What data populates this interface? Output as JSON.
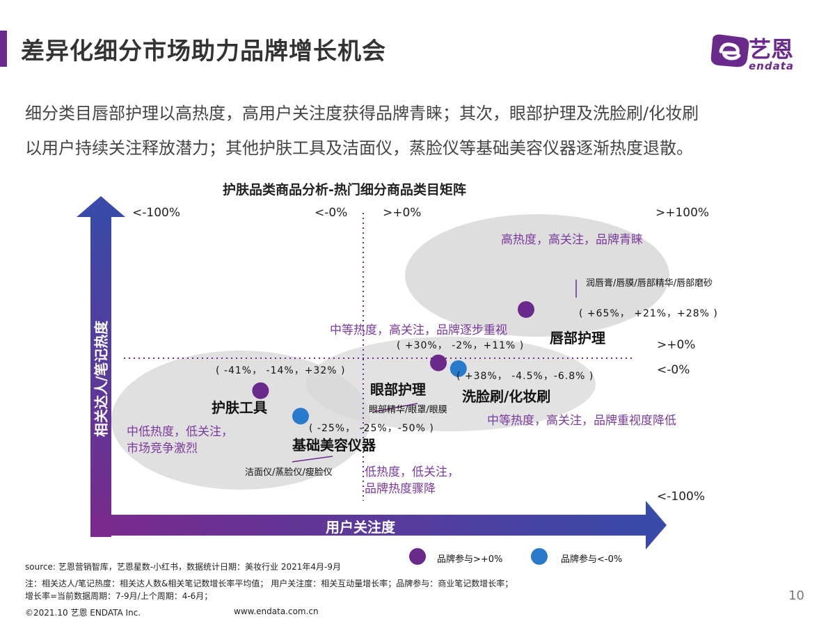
{
  "header": {
    "title": "差异化细分市场助力品牌增长机会",
    "logo_cn": "艺恩",
    "logo_en": "endata"
  },
  "summary": {
    "line1": "细分类目唇部护理以高热度，高用户关注度获得品牌青睐；其次，眼部护理及洗脸刷/化妆刷",
    "line2": "以用户持续关注释放潜力；其他护肤工具及洁面仪，蒸脸仪等基础美容仪器逐渐热度退散。"
  },
  "chart_data": {
    "type": "scatter",
    "title": "护肤品类商品分析-热门细分商品类目矩阵",
    "xlabel": "用户关注度",
    "ylabel": "相关达人/笔记热度",
    "x_ticks": {
      "min": "<-100%",
      "neg0": "<-0%",
      "pos0": ">+0%",
      "max": ">+100%"
    },
    "y_ticks": {
      "max": ">+0%",
      "zero_neg": "<-0%",
      "min": "<-100%"
    },
    "colors": {
      "positive": "#6a2a8c",
      "negative": "#2a7acb",
      "accent": "#6a2a8c",
      "region": "#d8d8d8"
    },
    "points": [
      {
        "category": "唇部护理",
        "values": "( +65%， +21%，+28% )",
        "subcategories": "润唇膏/唇膜/唇部精华/唇部磨砂",
        "x": 65,
        "y": 21,
        "brand": 28,
        "group": "positive"
      },
      {
        "category": "眼部护理",
        "values": "( +30%， -2%，+11% )",
        "subcategories": "眼部精华/眼罩/眼膜",
        "x": 30,
        "y": -2,
        "brand": 11,
        "group": "positive"
      },
      {
        "category": "洗脸刷/化妆刷",
        "values": "( +38%， -4.5%，-6.8% )",
        "subcategories": "",
        "x": 38,
        "y": -4.5,
        "brand": -6.8,
        "group": "negative"
      },
      {
        "category": "护肤工具",
        "values": "( -41%， -14%，+32% )",
        "subcategories": "",
        "x": -41,
        "y": -14,
        "brand": 32,
        "group": "positive"
      },
      {
        "category": "基础美容仪器",
        "values": "( -25%， -25%，-50% )",
        "subcategories": "洁面仪/蒸脸仪/瘦脸仪",
        "x": -25,
        "y": -25,
        "brand": -50,
        "group": "negative"
      }
    ],
    "annotations": {
      "top_right": "高热度，高关注，品牌青睐",
      "middle": "中等热度，高关注，品牌逐步重视",
      "right_low": "中等热度，高关注，品牌重视度降低",
      "left_low_1": "中低热度，低关注，",
      "left_low_2": "市场竞争激烈",
      "bottom_1": "低热度，低关注，",
      "bottom_2": "品牌热度骤降"
    },
    "legend": [
      {
        "label": "品牌参与>+0%",
        "color": "#6a2a8c"
      },
      {
        "label": "品牌参与<-0%",
        "color": "#2a7acb"
      }
    ]
  },
  "footer": {
    "source": "source: 艺恩营销智库，艺恩星数-小红书，数据统计日期：美妆行业 2021年4月-9月",
    "note1": "注：相关达人/笔记热度：相关达人数&相关笔记数增长率平均值； 用户关注度：相关互动量增长率；品牌参与：商业笔记数增长率；",
    "note2": "增长率=当前数据周期：7-9月/上个周期：4-6月；",
    "copyright": "©2021.10 艺恩 ENDATA Inc.",
    "website": "www.endata.com.cn",
    "page_number": "10"
  }
}
